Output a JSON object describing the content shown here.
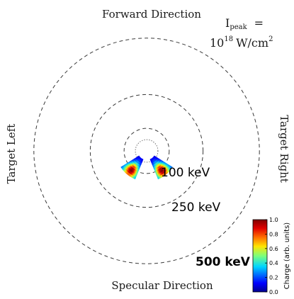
{
  "chart_data": {
    "type": "polar-heatmap",
    "directions": {
      "top": "Forward Direction",
      "bottom": "Specular Direction",
      "left": "Target Left",
      "right": "Target Right"
    },
    "annotation": {
      "line1_prefix": "I",
      "line1_sub": "peak",
      "line1_suffix": "=",
      "line2_base": "10",
      "line2_exp": "18",
      "line2_unit": "W/cm",
      "line2_unit_exp": "2"
    },
    "energy_rings": [
      {
        "energy": 100,
        "label": "100 keV"
      },
      {
        "energy": 250,
        "label": "250 keV"
      },
      {
        "energy": 500,
        "label": "500 keV"
      }
    ],
    "inner_dotted_ring_energy": 50,
    "colorbar": {
      "label": "Charge (arb. units)",
      "ticks": [
        "0.0",
        "0.2",
        "0.4",
        "0.6",
        "0.8",
        "1.0"
      ],
      "range": [
        0.0,
        1.0
      ]
    },
    "lobes": [
      {
        "name": "left-lobe",
        "angle_range_deg": [
          -58,
          -22
        ],
        "energy_range_keV": [
          40,
          135
        ],
        "angle_peak_deg": -38,
        "energy_peak_keV": 110
      },
      {
        "name": "right-lobe",
        "angle_range_deg": [
          22,
          58
        ],
        "energy_range_keV": [
          40,
          135
        ],
        "angle_peak_deg": 38,
        "energy_peak_keV": 110
      }
    ]
  }
}
